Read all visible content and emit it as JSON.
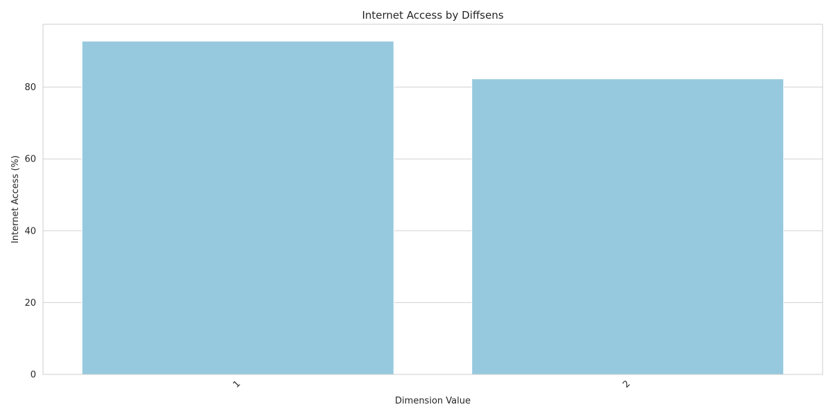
{
  "chart_data": {
    "type": "bar",
    "title": "Internet Access by Diffsens",
    "xlabel": "Dimension Value",
    "ylabel": "Internet Access (%)",
    "categories": [
      "1",
      "2"
    ],
    "values": [
      92.8,
      82.3
    ],
    "ylim": [
      0,
      97.5
    ],
    "yticks": [
      0,
      20,
      40,
      60,
      80
    ],
    "grid": true,
    "legend": "none",
    "bar_color": "#96c9de",
    "grid_color": "#d0d0d0",
    "frame_color": "#cccccc"
  }
}
